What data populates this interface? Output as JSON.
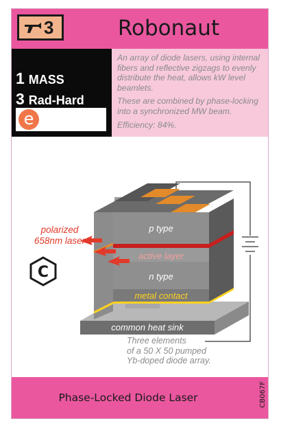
{
  "card": {
    "title": "Robonaut",
    "thrust": "3",
    "stats": {
      "mass_value": "1",
      "mass_label": "MASS",
      "rad_value": "3",
      "rad_label": "Rad-Hard",
      "type_letter": "e"
    },
    "description": [
      "An array of diode lasers, using internal fibers and reflective zigzags to evenly distribute the heat, allows kW level beamlets.",
      "These are combined by phase-locking into a synchronized MW beam.",
      "Efficiency: 84%."
    ],
    "diagram": {
      "laser_label_line1": "polarized",
      "laser_label_line2": "658nm laser",
      "p_type": "p type",
      "active_layer": "active layer",
      "n_type": "n type",
      "metal_contact": "metal contact",
      "heat_sink": "common heat sink",
      "caption_line1": "Three elements",
      "caption_line2": "of a 50 X 50 pumped",
      "caption_line3": "Yb-doped diode array."
    },
    "synergy_symbol": "C",
    "footer_title": "Phase-Locked Diode Laser",
    "card_code": "CB067F",
    "colors": {
      "header": "#ea579f",
      "pink_side": "#f7c9db",
      "thrust_badge": "#f2b48c",
      "type_icon": "#f0764a",
      "laser_red": "#e23a2a"
    },
    "icons": [
      "thrust-ship-icon",
      "synergy-hexagon-icon",
      "battery-icon"
    ]
  }
}
